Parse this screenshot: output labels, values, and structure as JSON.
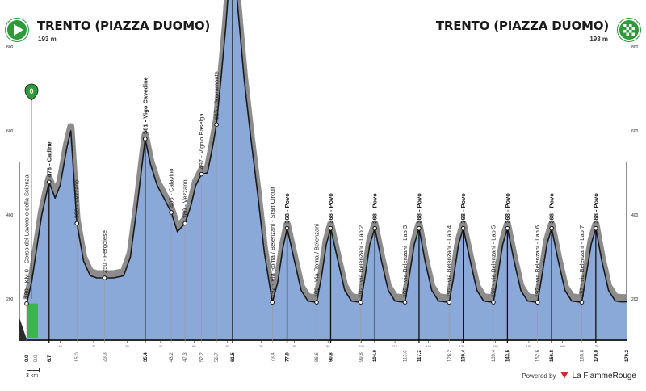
{
  "start": {
    "title": "TRENTO (PIAZZA DUOMO)",
    "altitude": "193 m",
    "icon": "play-icon"
  },
  "finish": {
    "title": "TRENTO (PIAZZA DUOMO)",
    "altitude": "193 m",
    "icon": "checkered-flag-icon"
  },
  "km0_marker": {
    "label": "0",
    "icon": "km-zero-pin-icon"
  },
  "scale": {
    "label": "3 km"
  },
  "branding": {
    "powered_label": "Powered by",
    "brand": "La FlammeRouge",
    "icon": "flamme-rouge-logo-icon"
  },
  "colors": {
    "profile_fill": "#8aa8d8",
    "profile_edge": "#6f8fc4",
    "climb_band": "#8c8c8c",
    "start_band": "#3db34a",
    "flag_green": "#2e9a3a"
  },
  "chart_data": {
    "type": "area",
    "title": "",
    "xlabel": "",
    "ylabel": "",
    "xlim": [
      0,
      179.2
    ],
    "ylim": [
      0,
      1200
    ],
    "y_ticks": [
      200,
      400,
      600,
      800,
      1000,
      1200
    ],
    "x_ticks": [
      10,
      20,
      30,
      40,
      50,
      60,
      70,
      80,
      90,
      100,
      110,
      120,
      130,
      140,
      150,
      160,
      170
    ],
    "distance_labels": [
      {
        "km": 0.0,
        "label": "0.0",
        "bold": true
      },
      {
        "km": 0.0,
        "label": "0.0",
        "bold": false
      },
      {
        "km": 6.7,
        "label": "6.7",
        "bold": true
      },
      {
        "km": 15.0,
        "label": "15.0",
        "bold": false
      },
      {
        "km": 23.3,
        "label": "23.3",
        "bold": false
      },
      {
        "km": 35.4,
        "label": "35.4",
        "bold": true
      },
      {
        "km": 43.2,
        "label": "43.2",
        "bold": false
      },
      {
        "km": 47.3,
        "label": "47.3",
        "bold": false
      },
      {
        "km": 52.2,
        "label": "52.2",
        "bold": false
      },
      {
        "km": 56.7,
        "label": "56.7",
        "bold": false
      },
      {
        "km": 61.5,
        "label": "61.5",
        "bold": true
      },
      {
        "km": 73.4,
        "label": "73.4",
        "bold": false
      },
      {
        "km": 77.8,
        "label": "77.8",
        "bold": true
      },
      {
        "km": 86.6,
        "label": "86.6",
        "bold": false
      },
      {
        "km": 90.8,
        "label": "90.8",
        "bold": true
      },
      {
        "km": 99.8,
        "label": "99.8",
        "bold": false
      },
      {
        "km": 104.0,
        "label": "104.0",
        "bold": true
      },
      {
        "km": 113.0,
        "label": "113.0",
        "bold": false
      },
      {
        "km": 117.2,
        "label": "117.2",
        "bold": true
      },
      {
        "km": 126.2,
        "label": "126.2",
        "bold": false
      },
      {
        "km": 130.4,
        "label": "130.4",
        "bold": true
      },
      {
        "km": 139.4,
        "label": "139.4",
        "bold": false
      },
      {
        "km": 143.6,
        "label": "143.6",
        "bold": true
      },
      {
        "km": 152.6,
        "label": "152.6",
        "bold": false
      },
      {
        "km": 156.8,
        "label": "156.8",
        "bold": true
      },
      {
        "km": 165.8,
        "label": "165.8",
        "bold": false
      },
      {
        "km": 170.0,
        "label": "170.0",
        "bold": true
      },
      {
        "km": 179.2,
        "label": "179.2",
        "bold": true
      }
    ],
    "waypoints": [
      {
        "km": 0.0,
        "alt": 189,
        "label": "189 - KM 0 - Corso del Lavoro e della Scienza",
        "bold": false
      },
      {
        "km": 6.7,
        "alt": 478,
        "label": "478 - Cadine",
        "bold": true
      },
      {
        "km": 15.0,
        "alt": 380,
        "label": "380 - Vezzano",
        "bold": false
      },
      {
        "km": 23.3,
        "alt": 250,
        "label": "250 - Pergolese",
        "bold": false
      },
      {
        "km": 35.4,
        "alt": 581,
        "label": "581 - Vigo Cavedine",
        "bold": true
      },
      {
        "km": 43.2,
        "alt": 406,
        "label": "406 - Calavino",
        "bold": false
      },
      {
        "km": 47.3,
        "alt": 380,
        "label": "380 - Vezzano",
        "bold": false
      },
      {
        "km": 52.2,
        "alt": 497,
        "label": "497 - Vigolo Baselga",
        "bold": false
      },
      {
        "km": 56.7,
        "alt": 615,
        "label": "615 - Sopramonte",
        "bold": false
      },
      {
        "km": 61.5,
        "alt": 1040,
        "label": "1040 - Candriai",
        "bold": true
      },
      {
        "km": 73.4,
        "alt": 192,
        "label": "192 - Via Roma / Belenzani - Start Circuit",
        "bold": false
      },
      {
        "km": 77.8,
        "alt": 368,
        "label": "368 - Povo",
        "bold": true
      },
      {
        "km": 86.6,
        "alt": 192,
        "label": "192 - Via Roma / Belenzani",
        "bold": false
      },
      {
        "km": 90.8,
        "alt": 368,
        "label": "368 - Povo",
        "bold": true
      },
      {
        "km": 99.8,
        "alt": 192,
        "label": "192 - via Belenzani - Lap 2",
        "bold": false
      },
      {
        "km": 104.0,
        "alt": 368,
        "label": "368 - Povo",
        "bold": true
      },
      {
        "km": 113.0,
        "alt": 192,
        "label": "192 - via Belenzani - Lap 3",
        "bold": false
      },
      {
        "km": 117.2,
        "alt": 368,
        "label": "368 - Povo",
        "bold": true
      },
      {
        "km": 126.2,
        "alt": 192,
        "label": "192 - via Belenzani - Lap 4",
        "bold": false
      },
      {
        "km": 130.4,
        "alt": 368,
        "label": "368 - Povo",
        "bold": true
      },
      {
        "km": 139.4,
        "alt": 192,
        "label": "192 - via Belenzani - Lap 5",
        "bold": false
      },
      {
        "km": 143.6,
        "alt": 368,
        "label": "368 - Povo",
        "bold": true
      },
      {
        "km": 152.6,
        "alt": 192,
        "label": "192 - via Belenzani - Lap 6",
        "bold": false
      },
      {
        "km": 156.8,
        "alt": 368,
        "label": "368 - Povo",
        "bold": true
      },
      {
        "km": 165.8,
        "alt": 192,
        "label": "192 - via Belenzani - Lap 7",
        "bold": false
      },
      {
        "km": 170.0,
        "alt": 368,
        "label": "368 - Povo",
        "bold": true
      }
    ],
    "profile": [
      [
        0,
        189
      ],
      [
        1.5,
        240
      ],
      [
        3,
        320
      ],
      [
        4.5,
        400
      ],
      [
        6.7,
        478
      ],
      [
        8.5,
        440
      ],
      [
        10,
        470
      ],
      [
        12,
        560
      ],
      [
        13.2,
        600
      ],
      [
        15,
        380
      ],
      [
        17,
        290
      ],
      [
        19,
        255
      ],
      [
        21,
        250
      ],
      [
        23.3,
        250
      ],
      [
        26,
        250
      ],
      [
        29,
        255
      ],
      [
        31,
        300
      ],
      [
        33,
        420
      ],
      [
        34.5,
        520
      ],
      [
        35.4,
        581
      ],
      [
        37,
        520
      ],
      [
        39,
        470
      ],
      [
        41,
        440
      ],
      [
        43.2,
        406
      ],
      [
        45,
        360
      ],
      [
        47.3,
        380
      ],
      [
        49,
        420
      ],
      [
        50.5,
        470
      ],
      [
        52.2,
        497
      ],
      [
        54,
        500
      ],
      [
        55.5,
        560
      ],
      [
        56.7,
        615
      ],
      [
        58,
        720
      ],
      [
        59.5,
        850
      ],
      [
        60.5,
        960
      ],
      [
        61.5,
        1040
      ],
      [
        63,
        900
      ],
      [
        65,
        720
      ],
      [
        67,
        580
      ],
      [
        69,
        450
      ],
      [
        71,
        310
      ],
      [
        73.4,
        192
      ],
      [
        75,
        240
      ],
      [
        76.5,
        320
      ],
      [
        77.8,
        368
      ],
      [
        80,
        290
      ],
      [
        82,
        220
      ],
      [
        84,
        195
      ],
      [
        86.6,
        192
      ],
      [
        88,
        250
      ],
      [
        89.5,
        330
      ],
      [
        90.8,
        368
      ],
      [
        93,
        290
      ],
      [
        95,
        220
      ],
      [
        97,
        195
      ],
      [
        99.8,
        192
      ],
      [
        101,
        250
      ],
      [
        102.5,
        330
      ],
      [
        104,
        368
      ],
      [
        106,
        290
      ],
      [
        108,
        220
      ],
      [
        110,
        195
      ],
      [
        113,
        192
      ],
      [
        114.2,
        250
      ],
      [
        115.8,
        330
      ],
      [
        117.2,
        368
      ],
      [
        119,
        290
      ],
      [
        121,
        220
      ],
      [
        123,
        195
      ],
      [
        126.2,
        192
      ],
      [
        127.5,
        250
      ],
      [
        129,
        330
      ],
      [
        130.4,
        368
      ],
      [
        132.5,
        290
      ],
      [
        134.5,
        220
      ],
      [
        136.5,
        195
      ],
      [
        139.4,
        192
      ],
      [
        140.6,
        250
      ],
      [
        142.2,
        330
      ],
      [
        143.6,
        368
      ],
      [
        145.6,
        290
      ],
      [
        147.6,
        220
      ],
      [
        149.6,
        195
      ],
      [
        152.6,
        192
      ],
      [
        153.8,
        250
      ],
      [
        155.4,
        330
      ],
      [
        156.8,
        368
      ],
      [
        158.8,
        290
      ],
      [
        160.8,
        220
      ],
      [
        162.8,
        195
      ],
      [
        165.8,
        192
      ],
      [
        167,
        250
      ],
      [
        168.6,
        330
      ],
      [
        170,
        368
      ],
      [
        171.8,
        290
      ],
      [
        173.8,
        220
      ],
      [
        175.8,
        195
      ],
      [
        177.5,
        193
      ],
      [
        179.2,
        193
      ]
    ],
    "grid": false,
    "legend": "none"
  }
}
